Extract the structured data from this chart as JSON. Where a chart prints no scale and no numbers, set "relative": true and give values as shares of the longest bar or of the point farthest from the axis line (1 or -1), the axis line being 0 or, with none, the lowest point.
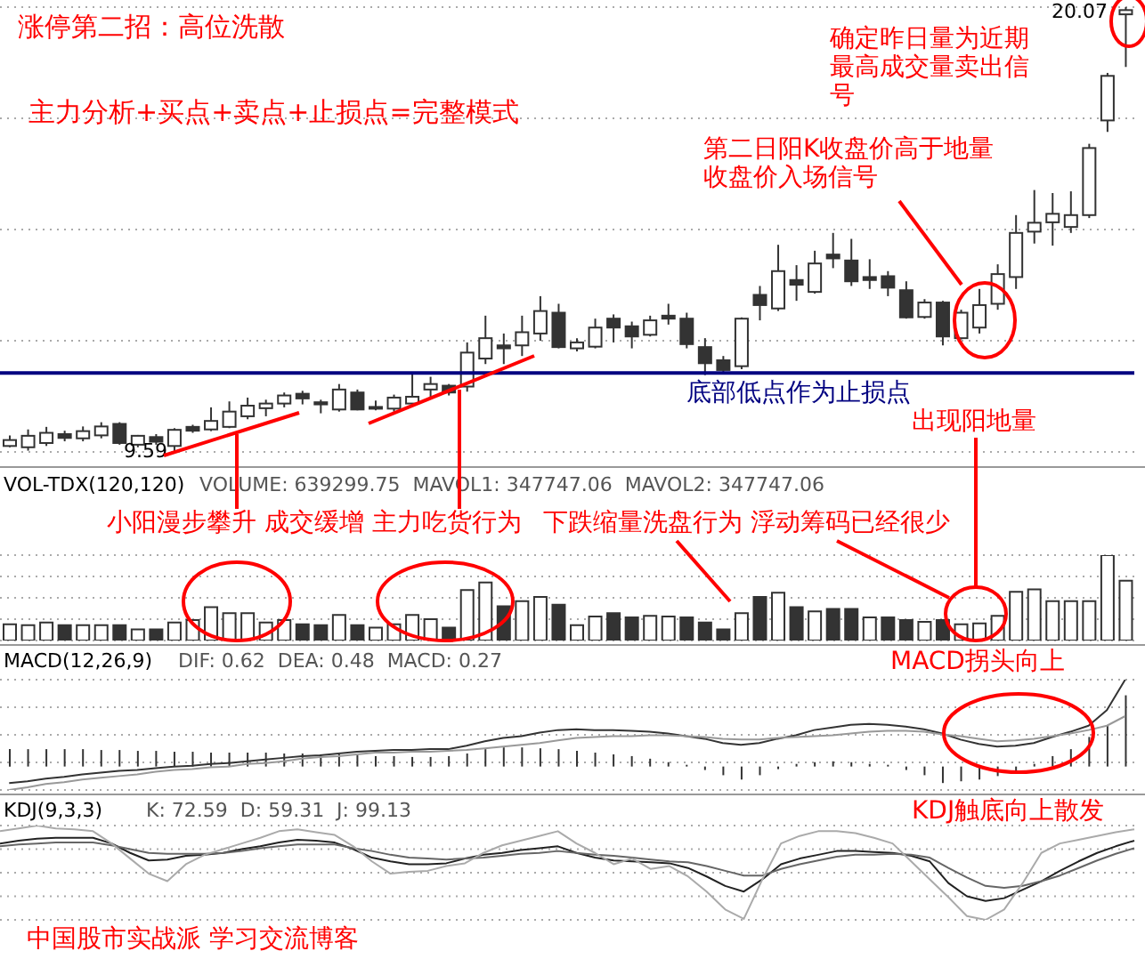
{
  "chart_data": [
    {
      "type": "candlestick",
      "title": "涨停第二招：高位洗散",
      "subtitle": "主力分析+买点+卖点+止损点=完整模式",
      "grid": true,
      "categories": [
        null,
        null,
        null,
        null,
        null,
        null,
        null,
        null,
        null,
        null,
        null,
        null,
        null,
        null,
        null,
        null,
        null,
        null,
        null,
        null,
        null,
        null,
        null,
        null,
        null,
        null,
        null,
        null,
        null,
        null,
        null,
        null,
        null,
        null,
        null,
        null,
        null,
        null,
        null,
        null,
        null,
        null,
        null,
        null,
        null,
        null,
        null,
        null,
        null,
        null,
        null,
        null,
        null,
        null,
        null,
        null,
        null,
        null,
        null,
        null,
        null,
        null
      ],
      "ohlc": [
        [
          9.73,
          9.98,
          9.7,
          9.87
        ],
        [
          9.7,
          10.12,
          9.62,
          9.97
        ],
        [
          9.8,
          10.18,
          9.73,
          10.04
        ],
        [
          10.01,
          10.09,
          9.84,
          9.92
        ],
        [
          9.91,
          10.19,
          9.84,
          10.08
        ],
        [
          9.98,
          10.29,
          9.91,
          10.19
        ],
        [
          10.25,
          10.29,
          9.76,
          9.8
        ],
        [
          9.76,
          9.99,
          9.7,
          9.97
        ],
        [
          9.94,
          10.01,
          9.76,
          9.83
        ],
        [
          9.73,
          10.15,
          9.59,
          10.11
        ],
        [
          10.18,
          10.23,
          10.04,
          10.09
        ],
        [
          10.12,
          10.64,
          10.08,
          10.32
        ],
        [
          10.18,
          10.78,
          10.15,
          10.54
        ],
        [
          10.43,
          10.87,
          10.36,
          10.68
        ],
        [
          10.62,
          10.82,
          10.43,
          10.73
        ],
        [
          10.73,
          10.99,
          10.64,
          10.92
        ],
        [
          10.96,
          11.03,
          10.71,
          10.85
        ],
        [
          10.76,
          10.82,
          10.5,
          10.71
        ],
        [
          10.59,
          11.19,
          10.54,
          11.06
        ],
        [
          10.99,
          11.06,
          10.57,
          10.59
        ],
        [
          10.65,
          10.8,
          10.57,
          10.62
        ],
        [
          10.61,
          10.94,
          10.54,
          10.87
        ],
        [
          10.73,
          11.43,
          10.66,
          10.89
        ],
        [
          11.06,
          11.36,
          10.87,
          11.19
        ],
        [
          11.15,
          11.19,
          10.92,
          10.99
        ],
        [
          11.13,
          12.17,
          11.01,
          11.93
        ],
        [
          11.79,
          12.8,
          11.66,
          12.27
        ],
        [
          12.1,
          12.38,
          11.66,
          12.03
        ],
        [
          12.1,
          12.8,
          11.85,
          12.41
        ],
        [
          12.38,
          13.26,
          12.21,
          12.91
        ],
        [
          12.87,
          13.08,
          12.03,
          12.06
        ],
        [
          12.03,
          12.27,
          11.96,
          12.17
        ],
        [
          12.07,
          12.73,
          12.03,
          12.52
        ],
        [
          12.73,
          12.83,
          12.17,
          12.52
        ],
        [
          12.55,
          12.66,
          12.03,
          12.31
        ],
        [
          12.35,
          12.8,
          12.31,
          12.69
        ],
        [
          12.8,
          13.08,
          12.59,
          12.73
        ],
        [
          12.73,
          12.87,
          12.03,
          12.13
        ],
        [
          12.06,
          12.27,
          11.4,
          11.68
        ],
        [
          11.75,
          11.85,
          11.47,
          11.52
        ],
        [
          11.61,
          12.76,
          11.54,
          12.73
        ],
        [
          13.29,
          13.5,
          12.69,
          13.05
        ],
        [
          12.97,
          14.47,
          12.91,
          13.85
        ],
        [
          13.64,
          13.99,
          13.15,
          13.53
        ],
        [
          13.36,
          14.33,
          13.32,
          14.03
        ],
        [
          14.24,
          14.75,
          13.92,
          14.15
        ],
        [
          14.1,
          14.61,
          13.5,
          13.61
        ],
        [
          13.71,
          14.13,
          13.43,
          13.64
        ],
        [
          13.73,
          13.85,
          13.26,
          13.46
        ],
        [
          13.4,
          13.61,
          12.73,
          12.76
        ],
        [
          12.77,
          13.19,
          12.73,
          13.11
        ],
        [
          13.11,
          13.15,
          12.1,
          12.31
        ],
        [
          12.27,
          12.94,
          12.24,
          12.87
        ],
        [
          12.52,
          13.43,
          12.38,
          13.05
        ],
        [
          13.08,
          14.01,
          12.94,
          13.78
        ],
        [
          13.71,
          15.17,
          13.43,
          14.75
        ],
        [
          14.78,
          15.76,
          14.5,
          14.99
        ],
        [
          15.0,
          15.69,
          14.45,
          15.2
        ],
        [
          14.89,
          15.73,
          14.75,
          15.17
        ],
        [
          15.17,
          16.85,
          15.1,
          16.75
        ],
        [
          17.4,
          18.52,
          17.13,
          18.45
        ],
        [
          19.9,
          20.07,
          18.66,
          20.0
        ]
      ],
      "ref_lines": [
        {
          "axis": "y",
          "value": 11.45,
          "label": "底部低点作为止损点",
          "color": "#000080"
        }
      ],
      "annotations": [
        "确定昨日量为近期最高成交量卖出信号",
        "第二日阳K收盘价高于地量收盘价入场信号",
        "出现阳地量",
        "9.59",
        "20.07"
      ]
    },
    {
      "type": "bar",
      "title": "VOL-TDX(120,120)",
      "subtitle": "VOLUME: 639299.75  MAVOL1: 347747.06  MAVOL2: 347747.06",
      "relative": true,
      "grid": true,
      "categories": [
        null,
        null,
        null,
        null,
        null,
        null,
        null,
        null,
        null,
        null,
        null,
        null,
        null,
        null,
        null,
        null,
        null,
        null,
        null,
        null,
        null,
        null,
        null,
        null,
        null,
        null,
        null,
        null,
        null,
        null,
        null,
        null,
        null,
        null,
        null,
        null,
        null,
        null,
        null,
        null,
        null,
        null,
        null,
        null,
        null,
        null,
        null,
        null,
        null,
        null,
        null,
        null,
        null,
        null,
        null,
        null,
        null,
        null,
        null,
        null,
        null,
        null
      ],
      "values": [
        0.19,
        0.18,
        0.21,
        0.18,
        0.18,
        0.18,
        0.18,
        0.13,
        0.13,
        0.21,
        0.24,
        0.39,
        0.32,
        0.32,
        0.21,
        0.24,
        0.19,
        0.18,
        0.3,
        0.18,
        0.15,
        0.19,
        0.3,
        0.25,
        0.15,
        0.59,
        0.68,
        0.4,
        0.46,
        0.51,
        0.42,
        0.18,
        0.28,
        0.32,
        0.27,
        0.29,
        0.28,
        0.27,
        0.21,
        0.13,
        0.32,
        0.51,
        0.56,
        0.39,
        0.34,
        0.37,
        0.37,
        0.27,
        0.27,
        0.24,
        0.22,
        0.24,
        0.19,
        0.2,
        0.29,
        0.57,
        0.6,
        0.46,
        0.46,
        0.46,
        1,
        0.7
      ],
      "colors": [
        "#ffffff",
        "#ffffff",
        "#ffffff",
        "#333333",
        "#ffffff",
        "#ffffff",
        "#333333",
        "#ffffff",
        "#333333",
        "#ffffff",
        "#ffffff",
        "#ffffff",
        "#ffffff",
        "#ffffff",
        "#ffffff",
        "#ffffff",
        "#333333",
        "#333333",
        "#ffffff",
        "#333333",
        "#ffffff",
        "#ffffff",
        "#ffffff",
        "#ffffff",
        "#333333",
        "#ffffff",
        "#ffffff",
        "#333333",
        "#ffffff",
        "#ffffff",
        "#333333",
        "#ffffff",
        "#ffffff",
        "#333333",
        "#333333",
        "#ffffff",
        "#ffffff",
        "#333333",
        "#333333",
        "#333333",
        "#ffffff",
        "#333333",
        "#ffffff",
        "#333333",
        "#ffffff",
        "#333333",
        "#333333",
        "#ffffff",
        "#333333",
        "#333333",
        "#ffffff",
        "#333333",
        "#ffffff",
        "#ffffff",
        "#ffffff",
        "#ffffff",
        "#ffffff",
        "#ffffff",
        "#ffffff",
        "#ffffff",
        "#ffffff",
        "#ffffff"
      ],
      "annotations": [
        "小阳漫步攀升 成交缓增 主力吃货行为",
        "下跌缩量洗盘行为 浮动筹码已经很少"
      ]
    },
    {
      "type": "line",
      "title": "MACD(12,26,9)",
      "subtitle": "DIF: 0.62  DEA: 0.48  MACD: 0.27",
      "relative": true,
      "grid": true,
      "categories": [
        null,
        null,
        null,
        null,
        null,
        null,
        null,
        null,
        null,
        null,
        null,
        null,
        null,
        null,
        null,
        null,
        null,
        null,
        null,
        null,
        null,
        null,
        null,
        null,
        null,
        null,
        null,
        null,
        null,
        null,
        null,
        null,
        null,
        null,
        null,
        null,
        null,
        null,
        null,
        null,
        null,
        null,
        null,
        null,
        null,
        null,
        null,
        null,
        null,
        null,
        null,
        null,
        null,
        null,
        null,
        null,
        null,
        null,
        null,
        null,
        null,
        null
      ],
      "series": [
        {
          "type": "bar",
          "color": "#333333",
          "values": [
            0.2,
            0.2,
            0.2,
            0.2,
            0.2,
            0.19,
            0.19,
            0.18,
            0.18,
            0.17,
            0.17,
            0.16,
            0.16,
            0.16,
            0.16,
            0.15,
            0.15,
            0.14,
            0.14,
            0.13,
            0.12,
            0.12,
            0.11,
            0.11,
            0.12,
            0.15,
            0.2,
            0.22,
            0.22,
            0.21,
            0.2,
            0.18,
            0.16,
            0.14,
            0.12,
            0.09,
            0.05,
            0.02,
            -0.04,
            -0.1,
            -0.15,
            -0.1,
            -0.03,
            0.03,
            0.05,
            0.06,
            0.05,
            0.03,
            0.02,
            -0.04,
            -0.1,
            -0.19,
            -0.17,
            -0.15,
            -0.11,
            -0.06,
            0.03,
            0.12,
            0.2,
            0.34,
            0.47,
            0.82
          ]
        },
        {
          "color": "#333333",
          "values": [
            -0.19,
            -0.17,
            -0.14,
            -0.12,
            -0.09,
            -0.07,
            -0.05,
            -0.04,
            -0.02,
            0,
            0.01,
            0.03,
            0.04,
            0.06,
            0.08,
            0.1,
            0.12,
            0.13,
            0.15,
            0.17,
            0.18,
            0.19,
            0.19,
            0.2,
            0.2,
            0.24,
            0.29,
            0.33,
            0.35,
            0.39,
            0.42,
            0.43,
            0.42,
            0.42,
            0.41,
            0.4,
            0.38,
            0.35,
            0.32,
            0.27,
            0.25,
            0.27,
            0.32,
            0.36,
            0.42,
            0.45,
            0.48,
            0.49,
            0.48,
            0.46,
            0.43,
            0.38,
            0.31,
            0.26,
            0.23,
            0.24,
            0.27,
            0.34,
            0.4,
            0.47,
            0.65,
            1
          ]
        },
        {
          "color": "#999999",
          "values": [
            -0.27,
            -0.24,
            -0.2,
            -0.18,
            -0.15,
            -0.13,
            -0.11,
            -0.09,
            -0.06,
            -0.04,
            -0.03,
            -0.01,
            0,
            0.03,
            0.04,
            0.06,
            0.09,
            0.11,
            0.12,
            0.14,
            0.16,
            0.16,
            0.17,
            0.17,
            0.18,
            0.19,
            0.21,
            0.23,
            0.25,
            0.27,
            0.3,
            0.33,
            0.34,
            0.35,
            0.35,
            0.36,
            0.36,
            0.35,
            0.34,
            0.32,
            0.31,
            0.31,
            0.33,
            0.34,
            0.35,
            0.36,
            0.38,
            0.4,
            0.41,
            0.41,
            0.4,
            0.37,
            0.35,
            0.32,
            0.29,
            0.3,
            0.32,
            0.35,
            0.38,
            0.42,
            0.47,
            0.58
          ]
        }
      ],
      "annotations": [
        "MACD拐头向上"
      ]
    },
    {
      "type": "line",
      "title": "KDJ(9,3,3)",
      "subtitle": "K: 72.59  D: 59.31  J: 99.13",
      "relative": true,
      "grid": true,
      "categories": [
        null,
        null,
        null,
        null,
        null,
        null,
        null,
        null,
        null,
        null,
        null,
        null,
        null,
        null,
        null,
        null,
        null,
        null,
        null,
        null,
        null,
        null,
        null,
        null,
        null,
        null,
        null,
        null,
        null,
        null,
        null,
        null,
        null,
        null,
        null,
        null,
        null,
        null,
        null,
        null,
        null,
        null,
        null,
        null,
        null,
        null,
        null,
        null,
        null,
        null,
        null,
        null,
        null,
        null,
        null,
        null,
        null,
        null,
        null,
        null,
        null,
        null
      ],
      "series": [
        {
          "color": "#222222",
          "values": [
            0.81,
            0.84,
            0.86,
            0.87,
            0.87,
            0.87,
            0.81,
            0.71,
            0.63,
            0.64,
            0.68,
            0.69,
            0.71,
            0.75,
            0.78,
            0.82,
            0.85,
            0.84,
            0.82,
            0.75,
            0.66,
            0.62,
            0.59,
            0.59,
            0.6,
            0.65,
            0.69,
            0.71,
            0.74,
            0.76,
            0.78,
            0.71,
            0.66,
            0.63,
            0.62,
            0.61,
            0.6,
            0.55,
            0.46,
            0.36,
            0.3,
            0.43,
            0.59,
            0.65,
            0.69,
            0.73,
            0.73,
            0.72,
            0.71,
            0.68,
            0.62,
            0.39,
            0.25,
            0.2,
            0.23,
            0.32,
            0.41,
            0.52,
            0.62,
            0.71,
            0.78,
            0.84
          ]
        },
        {
          "color": "#666666",
          "values": [
            0.78,
            0.8,
            0.81,
            0.82,
            0.82,
            0.82,
            0.79,
            0.75,
            0.71,
            0.7,
            0.7,
            0.7,
            0.71,
            0.73,
            0.76,
            0.78,
            0.8,
            0.8,
            0.8,
            0.76,
            0.73,
            0.69,
            0.66,
            0.65,
            0.64,
            0.65,
            0.66,
            0.68,
            0.7,
            0.71,
            0.73,
            0.71,
            0.69,
            0.68,
            0.66,
            0.64,
            0.62,
            0.61,
            0.57,
            0.52,
            0.47,
            0.47,
            0.54,
            0.59,
            0.63,
            0.67,
            0.69,
            0.69,
            0.7,
            0.69,
            0.66,
            0.55,
            0.45,
            0.36,
            0.34,
            0.36,
            0.41,
            0.47,
            0.55,
            0.63,
            0.7,
            0.76
          ]
        },
        {
          "color": "#aaaaaa",
          "values": [
            0.94,
            0.97,
            1,
            0.97,
            0.96,
            0.94,
            0.81,
            0.65,
            0.49,
            0.41,
            0.59,
            0.69,
            0.75,
            0.81,
            0.87,
            0.94,
            0.96,
            0.93,
            0.9,
            0.78,
            0.62,
            0.49,
            0.51,
            0.52,
            0.57,
            0.6,
            0.71,
            0.79,
            0.84,
            0.89,
            0.94,
            0.81,
            0.71,
            0.59,
            0.65,
            0.54,
            0.57,
            0.46,
            0.3,
            0.11,
            0.01,
            0.43,
            0.81,
            0.89,
            0.94,
            0.94,
            0.92,
            0.87,
            0.81,
            0.62,
            0.43,
            0.24,
            0.04,
            0,
            0.11,
            0.39,
            0.71,
            0.81,
            0.85,
            0.89,
            0.93,
            0.96
          ]
        }
      ],
      "annotations": [
        "KDJ触底向上散发",
        "中国股市实战派 学习交流博客"
      ]
    }
  ]
}
